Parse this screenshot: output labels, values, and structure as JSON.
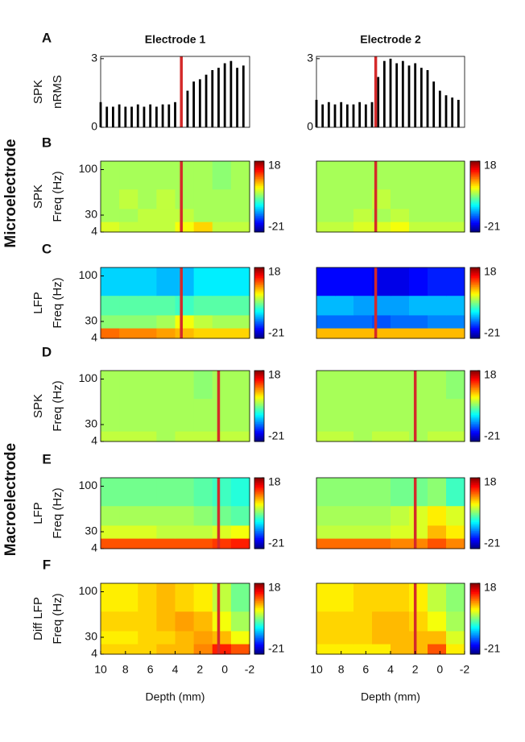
{
  "groups": [
    "Microelectrode",
    "Macroelectrode"
  ],
  "chart_data": [
    {
      "type": "bar",
      "title": "Electrode 1",
      "panel": "A",
      "ylabel": [
        "SPK",
        "nRMS"
      ],
      "color": "#000000",
      "marker_color": "#d42a2a",
      "x": [
        10,
        9.5,
        9,
        8.5,
        8,
        7.5,
        7,
        6.5,
        6,
        5.5,
        5,
        4.5,
        4,
        3.5,
        3,
        2.5,
        2,
        1.5,
        1,
        0.5,
        0,
        -0.5,
        -1,
        -1.5
      ],
      "values": [
        1.1,
        0.9,
        0.9,
        1.0,
        0.9,
        0.9,
        1.0,
        0.9,
        1.0,
        0.9,
        1.0,
        1.0,
        1.1,
        1.3,
        1.6,
        2.0,
        2.1,
        2.3,
        2.5,
        2.6,
        2.8,
        2.9,
        2.6,
        2.7
      ],
      "marker": 3.5,
      "xlim": [
        10,
        -2
      ],
      "ylim": [
        0,
        3.1
      ],
      "yticks": [
        0,
        3
      ]
    },
    {
      "type": "bar",
      "title": "Electrode 2",
      "color": "#000000",
      "marker_color": "#d42a2a",
      "x": [
        10,
        9.5,
        9,
        8.5,
        8,
        7.5,
        7,
        6.5,
        6,
        5.5,
        5,
        4.5,
        4,
        3.5,
        3,
        2.5,
        2,
        1.5,
        1,
        0.5,
        0,
        -0.5,
        -1,
        -1.5
      ],
      "values": [
        1.2,
        1.0,
        1.1,
        1.0,
        1.1,
        1.0,
        1.0,
        1.1,
        1.0,
        1.1,
        2.2,
        2.9,
        3.0,
        2.8,
        2.9,
        2.7,
        2.8,
        2.6,
        2.5,
        2.0,
        1.6,
        1.4,
        1.3,
        1.2
      ],
      "marker": 5.2,
      "xlim": [
        10,
        -2
      ],
      "ylim": [
        0,
        3.1
      ],
      "yticks": [
        0,
        3
      ]
    },
    {
      "type": "heatmap",
      "panel": "B",
      "ylabel": [
        "SPK",
        "Freq (Hz)"
      ],
      "marker_color": "#d42a2a",
      "xbins": [
        10,
        8.5,
        7,
        5.5,
        4,
        2.5,
        1,
        -0.5,
        -2
      ],
      "ybins": [
        4,
        20,
        40,
        70,
        113
      ],
      "values": [
        [
          2,
          1,
          1,
          1,
          3,
          5,
          1,
          1
        ],
        [
          0,
          0,
          1,
          1,
          1,
          0,
          0,
          0
        ],
        [
          0,
          1,
          0,
          1,
          0,
          0,
          0,
          0
        ],
        [
          0,
          0,
          0,
          0,
          0,
          0,
          -1,
          0
        ]
      ],
      "marker": 3.5,
      "xlim": [
        10,
        -2
      ],
      "ylim": [
        4,
        113
      ],
      "yticks": [
        4,
        30,
        100
      ],
      "clim": [
        -21,
        18
      ],
      "cticks": [
        -21,
        18
      ]
    },
    {
      "type": "heatmap",
      "marker_color": "#d42a2a",
      "xbins": [
        10,
        8.5,
        7,
        5.5,
        4,
        2.5,
        1,
        -0.5,
        -2
      ],
      "ybins": [
        4,
        20,
        40,
        70,
        113
      ],
      "values": [
        [
          1,
          1,
          2,
          2,
          3,
          1,
          1,
          1
        ],
        [
          0,
          0,
          1,
          0,
          1,
          0,
          0,
          0
        ],
        [
          0,
          0,
          0,
          1,
          0,
          0,
          0,
          0
        ],
        [
          0,
          0,
          0,
          0,
          0,
          0,
          0,
          0
        ]
      ],
      "marker": 5.2,
      "xlim": [
        10,
        -2
      ],
      "ylim": [
        4,
        113
      ],
      "clim": [
        -21,
        18
      ],
      "cticks": [
        -21,
        18
      ]
    },
    {
      "type": "heatmap",
      "panel": "C",
      "ylabel": [
        "LFP",
        "Freq (Hz)"
      ],
      "marker_color": "#d42a2a",
      "xbins": [
        10,
        8.5,
        7,
        5.5,
        4,
        2.5,
        1,
        -0.5,
        -2
      ],
      "ybins": [
        4,
        20,
        40,
        70,
        113
      ],
      "values": [
        [
          9,
          8,
          8,
          7,
          6,
          5,
          5,
          5
        ],
        [
          -1,
          -1,
          -1,
          0,
          3,
          1,
          0,
          0
        ],
        [
          -3,
          -3,
          -3,
          -3,
          -4,
          -3,
          -3,
          -3
        ],
        [
          -8,
          -8,
          -8,
          -9,
          -9,
          -7,
          -7,
          -7
        ]
      ],
      "marker": 3.5,
      "xlim": [
        10,
        -2
      ],
      "ylim": [
        4,
        113
      ],
      "yticks": [
        4,
        30,
        100
      ],
      "clim": [
        -21,
        18
      ],
      "cticks": [
        -21,
        18
      ]
    },
    {
      "type": "heatmap",
      "marker_color": "#d42a2a",
      "xbins": [
        10,
        8.5,
        7,
        5.5,
        4,
        2.5,
        1,
        -0.5,
        -2
      ],
      "ybins": [
        4,
        20,
        40,
        70,
        113
      ],
      "values": [
        [
          6,
          6,
          6,
          6,
          6,
          6,
          6,
          6
        ],
        [
          -12,
          -12,
          -12,
          -13,
          -12,
          -12,
          -11,
          -11
        ],
        [
          -9,
          -9,
          -10,
          -10,
          -10,
          -9,
          -9,
          -9
        ],
        [
          -16,
          -16,
          -16,
          -17,
          -17,
          -16,
          -15,
          -15
        ]
      ],
      "marker": 5.2,
      "xlim": [
        10,
        -2
      ],
      "ylim": [
        4,
        113
      ],
      "clim": [
        -21,
        18
      ],
      "cticks": [
        -21,
        18
      ]
    },
    {
      "type": "heatmap",
      "panel": "D",
      "ylabel": [
        "SPK",
        "Freq (Hz)"
      ],
      "marker_color": "#d42a2a",
      "xbins": [
        10,
        8.5,
        7,
        5.5,
        4,
        2.5,
        1,
        -0.5,
        -2
      ],
      "ybins": [
        4,
        20,
        40,
        70,
        113
      ],
      "values": [
        [
          1,
          1,
          1,
          0,
          1,
          1,
          1,
          1
        ],
        [
          0,
          0,
          0,
          0,
          0,
          0,
          0,
          0
        ],
        [
          0,
          0,
          0,
          0,
          0,
          0,
          0,
          0
        ],
        [
          0,
          0,
          0,
          0,
          0,
          -1,
          0,
          0
        ]
      ],
      "marker": 0.5,
      "xlim": [
        10,
        -2
      ],
      "ylim": [
        4,
        113
      ],
      "yticks": [
        4,
        30,
        100
      ],
      "clim": [
        -21,
        18
      ],
      "cticks": [
        -21,
        18
      ]
    },
    {
      "type": "heatmap",
      "marker_color": "#d42a2a",
      "xbins": [
        10,
        8.5,
        7,
        5.5,
        4,
        2.5,
        1,
        -0.5,
        -2
      ],
      "ybins": [
        4,
        20,
        40,
        70,
        113
      ],
      "values": [
        [
          1,
          1,
          0,
          1,
          1,
          0,
          1,
          1
        ],
        [
          0,
          0,
          0,
          0,
          0,
          0,
          0,
          0
        ],
        [
          0,
          0,
          0,
          0,
          0,
          0,
          0,
          0
        ],
        [
          0,
          0,
          0,
          0,
          0,
          0,
          0,
          -1
        ]
      ],
      "marker": 2,
      "xlim": [
        10,
        -2
      ],
      "ylim": [
        4,
        113
      ],
      "clim": [
        -21,
        18
      ],
      "cticks": [
        -21,
        18
      ]
    },
    {
      "type": "heatmap",
      "panel": "E",
      "ylabel": [
        "LFP",
        "Freq (Hz)"
      ],
      "marker_color": "#d42a2a",
      "xbins": [
        10,
        8.5,
        7,
        5.5,
        4,
        2.5,
        1,
        -0.5,
        -2
      ],
      "ybins": [
        4,
        20,
        40,
        70,
        113
      ],
      "values": [
        [
          10,
          10,
          10,
          10,
          10,
          10,
          11,
          12
        ],
        [
          2,
          2,
          2,
          1,
          1,
          1,
          2,
          3
        ],
        [
          0,
          0,
          0,
          0,
          0,
          -1,
          -2,
          -3
        ],
        [
          -2,
          -2,
          -2,
          -2,
          -2,
          -3,
          -4,
          -5
        ]
      ],
      "marker": 0.5,
      "xlim": [
        10,
        -2
      ],
      "ylim": [
        4,
        113
      ],
      "yticks": [
        4,
        30,
        100
      ],
      "clim": [
        -21,
        18
      ],
      "cticks": [
        -21,
        18
      ]
    },
    {
      "type": "heatmap",
      "marker_color": "#d42a2a",
      "xbins": [
        10,
        8.5,
        7,
        5.5,
        4,
        2.5,
        1,
        -0.5,
        -2
      ],
      "ybins": [
        4,
        20,
        40,
        70,
        113
      ],
      "values": [
        [
          9,
          9,
          9,
          9,
          8,
          8,
          10,
          8
        ],
        [
          1,
          1,
          1,
          1,
          2,
          2,
          6,
          4
        ],
        [
          0,
          0,
          0,
          0,
          1,
          2,
          4,
          2
        ],
        [
          -1,
          -1,
          -1,
          -1,
          -2,
          -2,
          -1,
          -4
        ]
      ],
      "marker": 2,
      "xlim": [
        10,
        -2
      ],
      "ylim": [
        4,
        113
      ],
      "clim": [
        -21,
        18
      ],
      "cticks": [
        -21,
        18
      ]
    },
    {
      "type": "heatmap",
      "panel": "F",
      "ylabel": [
        "Diff LFP",
        "Freq (Hz)"
      ],
      "xlabel": "Depth (mm)",
      "marker_color": "#d42a2a",
      "xbins": [
        10,
        8.5,
        7,
        5.5,
        4,
        2.5,
        1,
        -0.5,
        -2
      ],
      "ybins": [
        4,
        20,
        40,
        70,
        113
      ],
      "values": [
        [
          5,
          5,
          5,
          6,
          6,
          8,
          12,
          10
        ],
        [
          4,
          4,
          5,
          5,
          6,
          7,
          6,
          3
        ],
        [
          5,
          5,
          5,
          6,
          7,
          6,
          3,
          0
        ],
        [
          4,
          4,
          5,
          6,
          5,
          4,
          1,
          -2
        ]
      ],
      "marker": 0.5,
      "xlim": [
        10,
        -2
      ],
      "xticks": [
        10,
        8,
        6,
        4,
        2,
        0,
        -2
      ],
      "ylim": [
        4,
        113
      ],
      "yticks": [
        4,
        30,
        100
      ],
      "clim": [
        -21,
        18
      ],
      "cticks": [
        -21,
        18
      ]
    },
    {
      "type": "heatmap",
      "xlabel": "Depth (mm)",
      "marker_color": "#d42a2a",
      "xbins": [
        10,
        8.5,
        7,
        5.5,
        4,
        2.5,
        1,
        -0.5,
        -2
      ],
      "ybins": [
        4,
        20,
        40,
        70,
        113
      ],
      "values": [
        [
          4,
          4,
          4,
          4,
          6,
          6,
          10,
          4
        ],
        [
          5,
          5,
          5,
          6,
          6,
          6,
          6,
          2
        ],
        [
          5,
          5,
          5,
          6,
          6,
          5,
          3,
          0
        ],
        [
          4,
          4,
          5,
          5,
          5,
          4,
          1,
          -1
        ]
      ],
      "marker": 2,
      "xlim": [
        10,
        -2
      ],
      "xticks": [
        10,
        8,
        6,
        4,
        2,
        0,
        -2
      ],
      "ylim": [
        4,
        113
      ],
      "clim": [
        -21,
        18
      ],
      "cticks": [
        -21,
        18
      ]
    }
  ]
}
